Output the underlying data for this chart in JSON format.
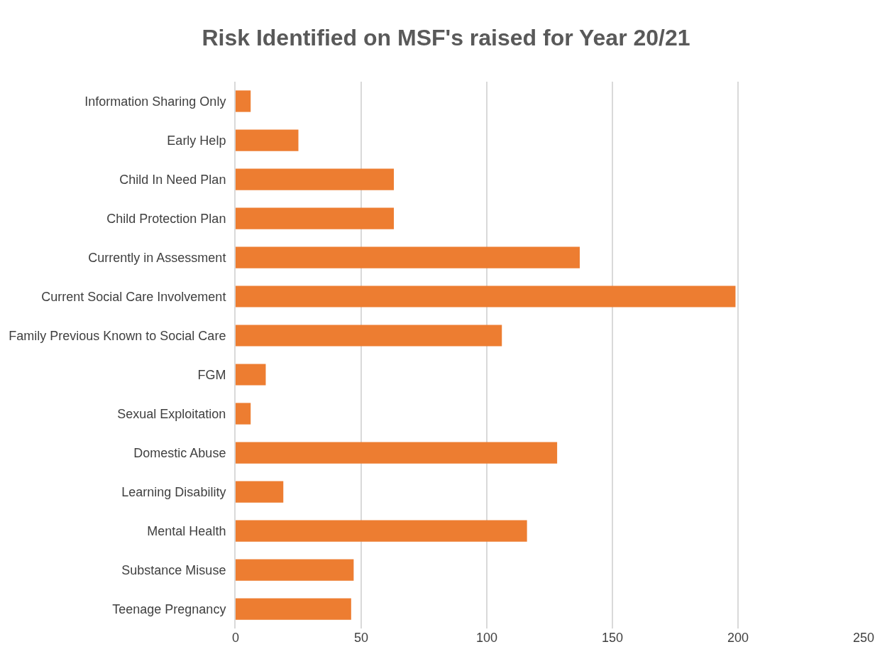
{
  "chart_data": {
    "type": "bar",
    "orientation": "horizontal",
    "title": "Risk Identified on MSF's raised for Year 20/21",
    "categories": [
      "Information Sharing Only",
      "Early Help",
      "Child In Need Plan",
      "Child Protection Plan",
      "Currently in Assessment",
      "Current Social Care Involvement",
      "Family Previous Known to Social Care",
      "FGM",
      "Sexual Exploitation",
      "Domestic Abuse",
      "Learning Disability",
      "Mental Health",
      "Substance Misuse",
      "Teenage Pregnancy"
    ],
    "values": [
      6,
      25,
      63,
      63,
      137,
      199,
      106,
      12,
      6,
      128,
      19,
      116,
      47,
      46
    ],
    "color": "#ed7d31",
    "xlim": [
      0,
      250
    ],
    "xticks": [
      0,
      50,
      100,
      150,
      200,
      250
    ],
    "grid": "x"
  }
}
